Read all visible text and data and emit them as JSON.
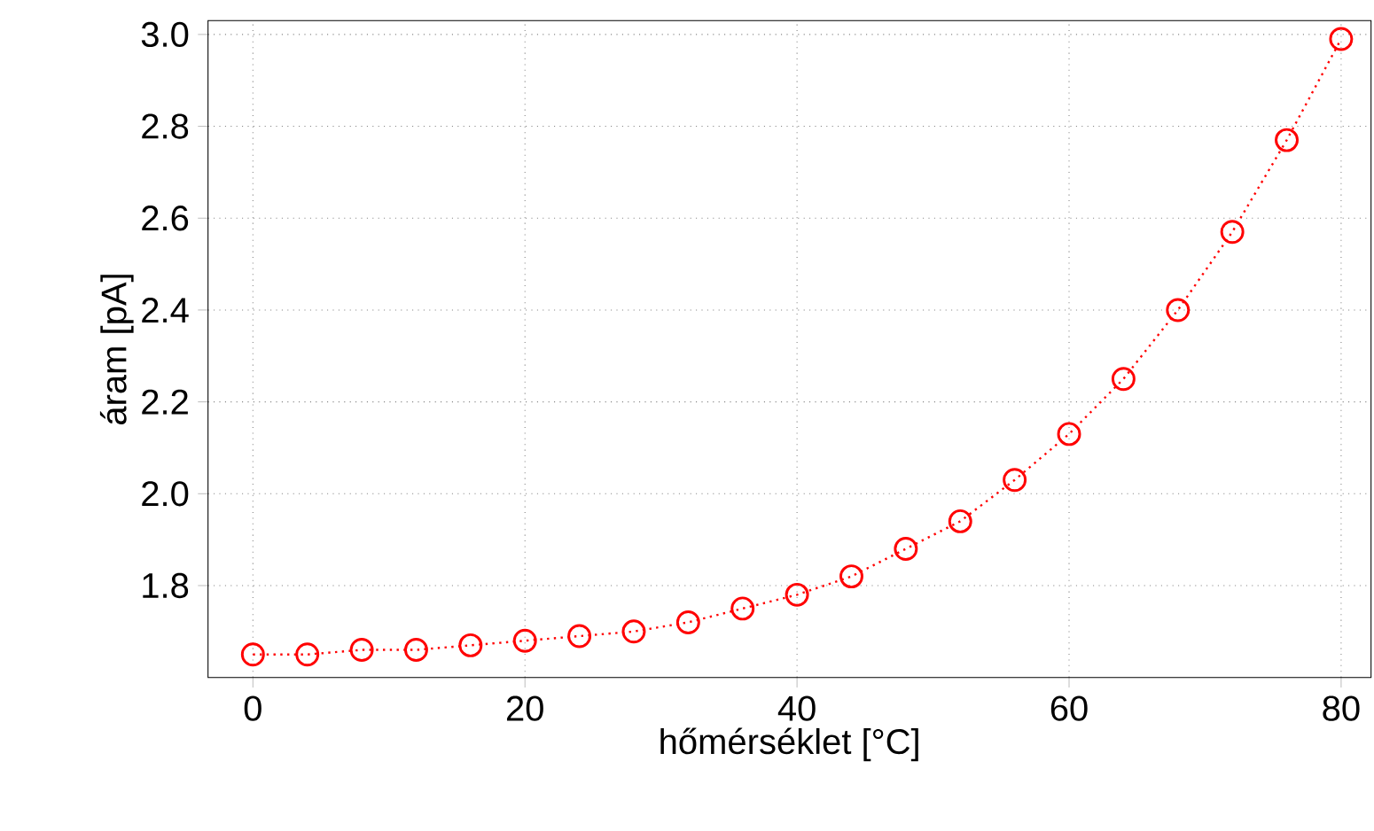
{
  "chart_data": {
    "type": "line",
    "xlabel": "hőmérséklet [°C]",
    "ylabel": "áram [pA]",
    "x": [
      0,
      4,
      8,
      12,
      16,
      20,
      24,
      28,
      32,
      36,
      40,
      44,
      48,
      52,
      56,
      60,
      64,
      68,
      72,
      76,
      80
    ],
    "series": [
      {
        "color": "#ff0000",
        "values": [
          1.65,
          1.65,
          1.66,
          1.66,
          1.67,
          1.68,
          1.69,
          1.7,
          1.72,
          1.75,
          1.78,
          1.82,
          1.88,
          1.94,
          2.03,
          2.13,
          2.25,
          2.4,
          2.57,
          2.77,
          2.99
        ]
      }
    ],
    "xlim": [
      -3.3,
      82.2
    ],
    "ylim": [
      1.6,
      3.03
    ],
    "xticks": [
      0,
      20,
      40,
      60,
      80
    ],
    "yticks": [
      1.8,
      {
        "value": 2,
        "label": "2.0"
      },
      2.2,
      2.4,
      2.6,
      2.8,
      {
        "value": 3,
        "label": "3.0"
      }
    ],
    "grid": true,
    "marker": "circle",
    "line_style": "dotted"
  }
}
